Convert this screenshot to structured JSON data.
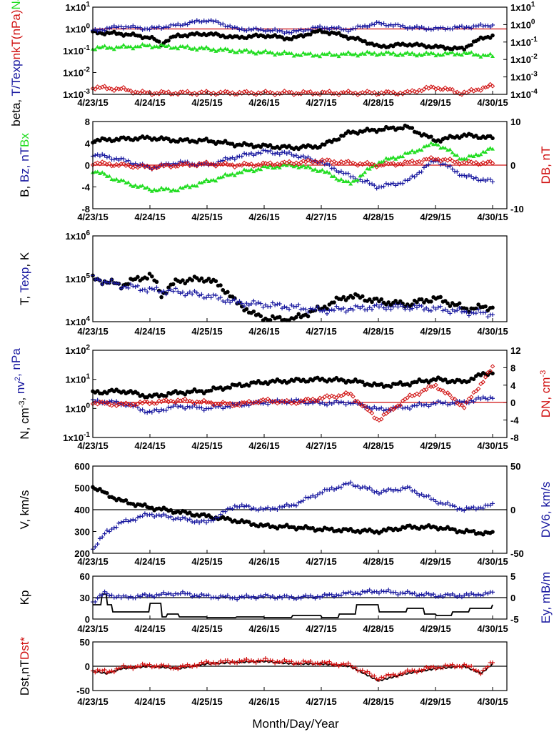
{
  "xlabel": "Month/Day/Year",
  "dates": [
    "4/23/15",
    "4/24/15",
    "4/25/15",
    "4/26/15",
    "4/27/15",
    "4/28/15",
    "4/29/15",
    "4/30/15"
  ],
  "colors": {
    "black": "#000000",
    "blue": "#1a1aa0",
    "red": "#d01010",
    "green": "#22dd22"
  },
  "chart_data": [
    {
      "type": "scatter",
      "y_scale": "log",
      "ylim_left": [
        0.001,
        10
      ],
      "ylim_right": [
        0.0001,
        10
      ],
      "y_ticks_left": [
        "1x10-3",
        "1x10-2",
        "1x10-1",
        "1x100",
        "1x101"
      ],
      "y_ticks_right": [
        "1x10-4",
        "1x10-3",
        "1x10-2",
        "1x10-1",
        "1x100",
        "1x101"
      ],
      "ylabels_left": [
        {
          "text": "beta, ",
          "color": "black"
        },
        {
          "text": "T/Texp",
          "color": "blue"
        },
        {
          "text": "nkT(nPa)",
          "color": "red"
        },
        {
          "text": "Na/Np",
          "color": "green"
        }
      ],
      "ref_line": {
        "value": 1,
        "color": "red"
      },
      "series": [
        {
          "name": "beta",
          "color": "black",
          "marker": "dot",
          "x": [
            0,
            0.5,
            1,
            1.2,
            1.5,
            2,
            2.5,
            3,
            3.5,
            4,
            4.5,
            5,
            5.5,
            6,
            6.5,
            7
          ],
          "y": [
            0.7,
            0.6,
            0.4,
            0.2,
            0.5,
            0.6,
            0.4,
            0.5,
            0.35,
            0.8,
            0.4,
            0.15,
            0.2,
            0.15,
            0.12,
            0.5
          ]
        },
        {
          "name": "T/Texp",
          "color": "blue",
          "marker": "plus",
          "x": [
            0,
            0.5,
            1,
            1.5,
            2,
            2.5,
            3,
            3.5,
            4,
            4.5,
            5,
            5.5,
            6,
            6.5,
            7
          ],
          "y": [
            0.8,
            1.3,
            1.0,
            1.5,
            2.5,
            1.0,
            0.9,
            0.7,
            1.2,
            0.9,
            1.8,
            1.2,
            1.0,
            1.2,
            1.5
          ]
        },
        {
          "name": "nkT",
          "color": "red",
          "marker": "diamond",
          "x": [
            0,
            0.5,
            1,
            1.5,
            2,
            2.5,
            3,
            3.5,
            4,
            4.5,
            5,
            5.5,
            6,
            6.5,
            7
          ],
          "y": [
            0.00025,
            0.0002,
            8e-05,
            0.00012,
            0.0001,
            9e-05,
            0.00011,
            0.00012,
            0.0001,
            0.0001,
            0.0001,
            0.00012,
            0.00025,
            0.0001,
            0.0003
          ]
        },
        {
          "name": "Na/Np",
          "color": "green",
          "marker": "triangle",
          "x": [
            0,
            0.5,
            1,
            1.5,
            2,
            2.5,
            3,
            3.5,
            4,
            4.5,
            5,
            5.5,
            6,
            6.5,
            7
          ],
          "y": [
            0.045,
            0.05,
            0.06,
            0.05,
            0.04,
            0.03,
            0.025,
            0.02,
            0.018,
            0.02,
            0.022,
            0.02,
            0.02,
            0.022,
            0.015
          ]
        }
      ]
    },
    {
      "type": "scatter",
      "ylim_left": [
        -8,
        8
      ],
      "ylim_right": [
        -10,
        10
      ],
      "y_ticks_left": [
        "-8",
        "-4",
        "0",
        "4",
        "8"
      ],
      "y_ticks_right": [
        "-10",
        "0",
        "10"
      ],
      "ylabels_left": [
        {
          "text": "B, ",
          "color": "black"
        },
        {
          "text": "Bz, nT",
          "color": "blue"
        },
        {
          "text": "Bx",
          "color": "green"
        }
      ],
      "ylabel_right": {
        "text": "DB, nT",
        "color": "red"
      },
      "ref_line": {
        "value": 0,
        "color": "red"
      },
      "series": [
        {
          "name": "B",
          "color": "black",
          "marker": "dot",
          "x": [
            0,
            0.5,
            1,
            1.5,
            2,
            2.5,
            3,
            3.5,
            4,
            4.5,
            5,
            5.5,
            6,
            6.5,
            7
          ],
          "y": [
            4.5,
            4.8,
            5.0,
            4.5,
            4.5,
            3.8,
            3.5,
            3.2,
            3.5,
            6.0,
            6.5,
            7.0,
            4.5,
            5.5,
            5.0
          ]
        },
        {
          "name": "Bz",
          "color": "blue",
          "marker": "plus",
          "x": [
            0,
            0.5,
            1,
            1.5,
            2,
            2.5,
            3,
            3.5,
            4,
            4.5,
            5,
            5.5,
            6,
            6.5,
            7
          ],
          "y": [
            2.0,
            1.0,
            -0.5,
            0.5,
            0.0,
            1.5,
            2.5,
            2.0,
            0.5,
            -2.0,
            -4.0,
            -3.0,
            1.0,
            -2.0,
            -3.0
          ]
        },
        {
          "name": "Bx",
          "color": "green",
          "marker": "triangle",
          "x": [
            0,
            0.5,
            1,
            1.5,
            2,
            2.5,
            3,
            3.5,
            4,
            4.5,
            5,
            5.5,
            6,
            6.5,
            7
          ],
          "y": [
            -1.0,
            -3.0,
            -4.5,
            -4.5,
            -3.0,
            -1.5,
            -0.5,
            0.0,
            -1.0,
            -3.5,
            0.5,
            2.0,
            4.0,
            1.0,
            3.0
          ]
        },
        {
          "name": "DB",
          "color": "red",
          "marker": "diamond",
          "x": [
            0,
            0.5,
            1,
            1.5,
            2,
            2.5,
            3,
            3.5,
            4,
            4.5,
            5,
            5.5,
            6,
            6.5,
            7
          ],
          "y": [
            0.5,
            0.0,
            -0.5,
            0.0,
            0.3,
            0.0,
            0.2,
            0.5,
            1.0,
            0.5,
            0.0,
            0.5,
            1.5,
            0.5,
            0.5
          ]
        }
      ]
    },
    {
      "type": "scatter",
      "y_scale": "log",
      "ylim_left": [
        10000,
        1000000
      ],
      "y_ticks_left": [
        "1x104",
        "1x105",
        "1x106"
      ],
      "ylabels_left": [
        {
          "text": "T, ",
          "color": "black"
        },
        {
          "text": "Texp",
          "color": "blue"
        },
        {
          "text": ", K",
          "color": "black"
        }
      ],
      "series": [
        {
          "name": "T",
          "color": "black",
          "marker": "dot",
          "x": [
            0,
            0.5,
            1,
            1.2,
            1.5,
            2,
            2.5,
            2.8,
            3,
            3.5,
            4,
            4.5,
            5,
            5.5,
            6,
            6.5,
            7
          ],
          "y": [
            100000,
            70000,
            120000,
            40000,
            90000,
            100000,
            28000,
            15000,
            12000,
            11000,
            20000,
            40000,
            30000,
            25000,
            35000,
            20000,
            22000
          ]
        },
        {
          "name": "Texp",
          "color": "blue",
          "marker": "plus",
          "x": [
            0,
            0.5,
            1,
            1.5,
            2,
            2.5,
            3,
            3.5,
            4,
            4.5,
            5,
            5.5,
            6,
            6.5,
            7
          ],
          "y": [
            100000,
            70000,
            55000,
            50000,
            40000,
            28000,
            25000,
            22000,
            18000,
            20000,
            22000,
            22000,
            20000,
            17000,
            15000
          ]
        }
      ]
    },
    {
      "type": "scatter",
      "y_scale": "log",
      "ylim_left": [
        0.1,
        100
      ],
      "ylim_right": [
        -8,
        12
      ],
      "y_ticks_left": [
        "1x10-1",
        "1x100",
        "1x101",
        "1x102"
      ],
      "y_ticks_right": [
        "-8",
        "-4",
        "0",
        "4",
        "8",
        "12"
      ],
      "ylabels_left": [
        {
          "text": "N, cm-3, ",
          "color": "black"
        },
        {
          "text": "nv2, nPa",
          "color": "blue"
        }
      ],
      "ylabel_right": {
        "text": "DN, cm-3",
        "color": "red"
      },
      "ref_line": {
        "value": 1.6,
        "color": "red"
      },
      "series": [
        {
          "name": "N",
          "color": "black",
          "marker": "dot",
          "x": [
            0,
            0.5,
            1,
            1.5,
            2,
            2.5,
            3,
            3.5,
            4,
            4.5,
            5,
            5.5,
            6,
            6.5,
            7
          ],
          "y": [
            3.5,
            4.0,
            2.5,
            3.5,
            4.0,
            6.0,
            8.0,
            9.0,
            10.0,
            9.0,
            6.0,
            7.0,
            10.0,
            8.0,
            18.0
          ]
        },
        {
          "name": "nv2",
          "color": "blue",
          "marker": "plus",
          "x": [
            0,
            0.5,
            1,
            1.5,
            2,
            2.5,
            3,
            3.5,
            4,
            4.5,
            5,
            5.5,
            6,
            6.5,
            7
          ],
          "y": [
            1.8,
            1.5,
            0.7,
            1.2,
            1.0,
            1.3,
            1.6,
            1.8,
            1.5,
            1.6,
            0.9,
            1.1,
            1.5,
            1.6,
            2.5
          ]
        },
        {
          "name": "DN",
          "color": "red",
          "marker": "diamond",
          "x": [
            0,
            0.5,
            1,
            1.5,
            2,
            2.5,
            3,
            3.5,
            4,
            4.5,
            5,
            5.5,
            6,
            6.5,
            7
          ],
          "y": [
            0,
            -0.5,
            0,
            0.5,
            0,
            -0.5,
            0.5,
            0,
            1,
            2,
            -4,
            1,
            4,
            -1,
            8
          ]
        }
      ]
    },
    {
      "type": "scatter",
      "ylim_left": [
        200,
        600
      ],
      "ylim_right": [
        -50,
        50
      ],
      "y_ticks_left": [
        "200",
        "300",
        "400",
        "500",
        "600"
      ],
      "y_ticks_right": [
        "-50",
        "0",
        "50"
      ],
      "ylabels_left": [
        {
          "text": "V, km/s",
          "color": "black"
        }
      ],
      "ylabel_right": {
        "text": "DV6, km/s",
        "color": "blue"
      },
      "ref_line": {
        "value": 400,
        "color": "black"
      },
      "series": [
        {
          "name": "V",
          "color": "black",
          "marker": "dot",
          "x": [
            0,
            0.25,
            0.5,
            1,
            1.5,
            2,
            2.5,
            3,
            3.5,
            4,
            4.5,
            5,
            5.5,
            6,
            6.5,
            7
          ],
          "y": [
            505,
            470,
            440,
            410,
            390,
            370,
            350,
            325,
            320,
            310,
            305,
            300,
            320,
            320,
            300,
            290
          ]
        },
        {
          "name": "DV6",
          "color": "blue",
          "marker": "plus",
          "x": [
            0,
            0.25,
            0.5,
            1,
            1.5,
            2,
            2.5,
            3,
            3.5,
            4,
            4.5,
            5,
            5.5,
            6,
            6.5,
            7
          ],
          "y": [
            -45,
            -25,
            -15,
            -5,
            -10,
            -15,
            5,
            0,
            5,
            20,
            30,
            20,
            25,
            10,
            0,
            5
          ]
        }
      ]
    },
    {
      "type": "line",
      "ylim_left": [
        0,
        60
      ],
      "ylim_right": [
        -5,
        5
      ],
      "y_ticks_left": [
        "0",
        "30",
        "60"
      ],
      "y_ticks_right": [
        "-5",
        "0",
        "5"
      ],
      "ylabels_left": [
        {
          "text": "Kp",
          "color": "black"
        }
      ],
      "ylabel_right": {
        "text": "Ey, mB/m",
        "color": "blue"
      },
      "ref_line": {
        "value": 30,
        "color": "black"
      },
      "series": [
        {
          "name": "Kp",
          "color": "black",
          "marker": "step",
          "x": [
            0,
            0.15,
            0.25,
            0.35,
            0.5,
            1.0,
            1.2,
            1.3,
            1.5,
            2.0,
            2.5,
            3.0,
            3.5,
            4.0,
            4.3,
            4.6,
            5.0,
            5.5,
            5.8,
            6.0,
            6.3,
            6.6,
            7.0
          ],
          "y": [
            20,
            35,
            20,
            10,
            10,
            22,
            3,
            7,
            3,
            0,
            3,
            0,
            5,
            0,
            7,
            20,
            10,
            15,
            7,
            5,
            10,
            15,
            20
          ]
        },
        {
          "name": "Ey",
          "color": "blue",
          "marker": "plus",
          "x": [
            0,
            0.2,
            0.5,
            1,
            1.5,
            2,
            2.5,
            3,
            3.5,
            4,
            4.5,
            5,
            5.5,
            6,
            6.5,
            7
          ],
          "y": [
            -1,
            1,
            0,
            0.5,
            1,
            0.3,
            0,
            0.3,
            0,
            0.3,
            1,
            1.5,
            1,
            0.5,
            0.5,
            1
          ]
        }
      ]
    },
    {
      "type": "line",
      "ylim_left": [
        -50,
        50
      ],
      "y_ticks_left": [
        "-50",
        "0",
        "50"
      ],
      "ylabels_left": [
        {
          "text": "Dst,nT",
          "color": "black"
        },
        {
          "text": "Dst*",
          "color": "red"
        }
      ],
      "ref_line": {
        "value": 0,
        "color": "black"
      },
      "series": [
        {
          "name": "Dst",
          "color": "black",
          "marker": "line",
          "x": [
            0,
            0.25,
            0.5,
            1,
            1.5,
            2,
            2.5,
            3,
            3.5,
            4,
            4.5,
            5,
            5.5,
            6,
            6.5,
            6.8,
            7
          ],
          "y": [
            -10,
            -15,
            -5,
            0,
            -5,
            5,
            8,
            10,
            5,
            5,
            0,
            -30,
            -15,
            -5,
            0,
            -15,
            5
          ]
        },
        {
          "name": "Dst*",
          "color": "red",
          "marker": "plus",
          "x": [
            0,
            0.25,
            0.5,
            1,
            1.5,
            2,
            2.5,
            3,
            3.5,
            4,
            4.5,
            5,
            5.5,
            6,
            6.5,
            6.8,
            7
          ],
          "y": [
            -8,
            -12,
            -3,
            2,
            -3,
            7,
            10,
            12,
            8,
            7,
            2,
            -25,
            -12,
            -2,
            2,
            -12,
            7
          ]
        }
      ]
    }
  ]
}
